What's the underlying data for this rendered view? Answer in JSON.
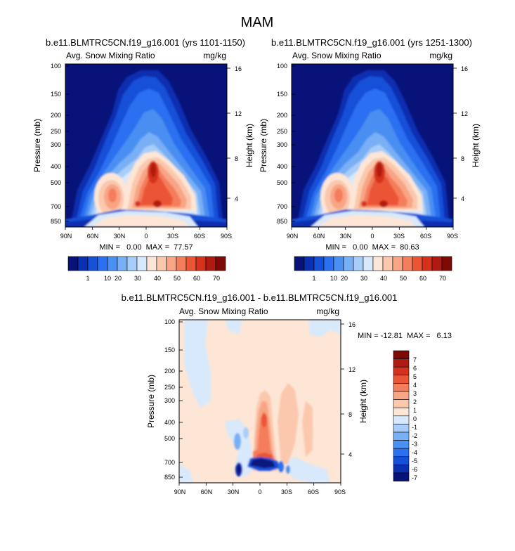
{
  "figure": {
    "title": "MAM"
  },
  "colors": {
    "scale": [
      "#08137a",
      "#0a2fb0",
      "#1550d8",
      "#2a70f0",
      "#4a8ff2",
      "#78aff5",
      "#a8cdf8",
      "#d8e9fb",
      "#fde6d6",
      "#fbc8ad",
      "#f8a585",
      "#f47d5b",
      "#eb5535",
      "#d5321e",
      "#b01a10",
      "#7e0a05"
    ]
  },
  "chart_data": [
    {
      "id": "panel-1101-1150",
      "type": "heatmap",
      "title": "b.e11.BLMTRC5CN.f19_g16.001 (yrs 1101-1150)",
      "left_label": "Avg. Snow Mixing Ratio",
      "right_label": "mg/kg",
      "xlabel": "",
      "ylabel": "Pressure (mb)",
      "ylabel_right": "Height (km)",
      "x_ticks": [
        "90N",
        "60N",
        "30N",
        "0",
        "30S",
        "60S",
        "90S"
      ],
      "y_ticks": [
        "100",
        "150",
        "200",
        "250",
        "300",
        "400",
        "500",
        "700",
        "850"
      ],
      "y_ticks_right": [
        "16",
        "12",
        "8",
        "4"
      ],
      "stats": "MIN =   0.00  MAX =  77.57",
      "min": 0.0,
      "max": 77.57,
      "colorbar_labels": [
        "1",
        "10",
        "20",
        "30",
        "40",
        "50",
        "60",
        "70"
      ]
    },
    {
      "id": "panel-1251-1300",
      "type": "heatmap",
      "title": "b.e11.BLMTRC5CN.f19_g16.001 (yrs 1251-1300)",
      "left_label": "Avg. Snow Mixing Ratio",
      "right_label": "mg/kg",
      "xlabel": "",
      "ylabel": "Pressure (mb)",
      "ylabel_right": "Height (km)",
      "x_ticks": [
        "90N",
        "60N",
        "30N",
        "0",
        "30S",
        "60S",
        "90S"
      ],
      "y_ticks": [
        "100",
        "150",
        "200",
        "250",
        "300",
        "400",
        "500",
        "700",
        "850"
      ],
      "y_ticks_right": [
        "16",
        "12",
        "8",
        "4"
      ],
      "stats": "MIN =   0.00  MAX =  80.63",
      "min": 0.0,
      "max": 80.63,
      "colorbar_labels": [
        "1",
        "10",
        "20",
        "30",
        "40",
        "50",
        "60",
        "70"
      ]
    },
    {
      "id": "panel-difference",
      "type": "heatmap",
      "title": "b.e11.BLMTRC5CN.f19_g16.001 - b.e11.BLMTRC5CN.f19_g16.001",
      "left_label": "Avg. Snow Mixing Ratio",
      "right_label": "mg/kg",
      "xlabel": "",
      "ylabel": "Pressure (mb)",
      "ylabel_right": "Height (km)",
      "x_ticks": [
        "90N",
        "60N",
        "30N",
        "0",
        "30S",
        "60S",
        "90S"
      ],
      "y_ticks": [
        "100",
        "150",
        "200",
        "250",
        "300",
        "400",
        "500",
        "700",
        "850"
      ],
      "y_ticks_right": [
        "16",
        "12",
        "8",
        "4"
      ],
      "stats": "MIN = -12.81  MAX =   6.13",
      "min": -12.81,
      "max": 6.13,
      "colorbar_labels": [
        "7",
        "6",
        "5",
        "4",
        "3",
        "2",
        "1",
        "0",
        "-1",
        "-2",
        "-3",
        "-4",
        "-5",
        "-6",
        "-7"
      ]
    }
  ]
}
